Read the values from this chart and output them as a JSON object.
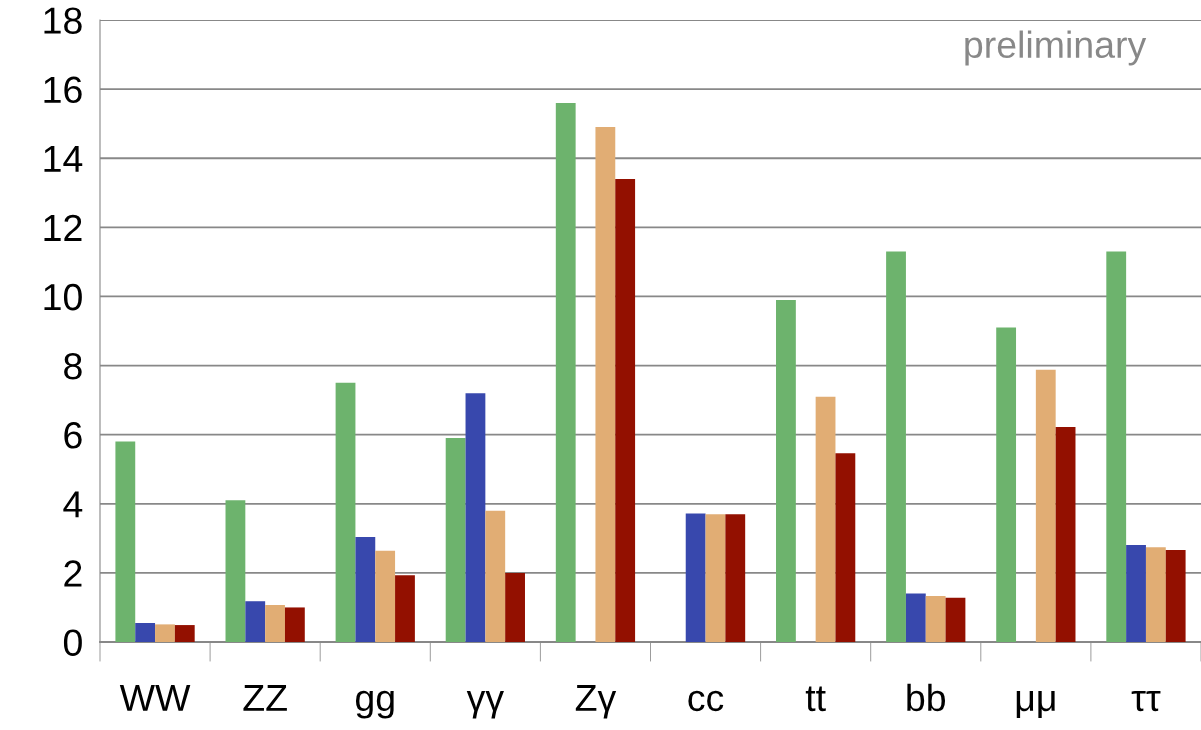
{
  "chart_data": {
    "type": "bar",
    "categories": [
      "WW",
      "ZZ",
      "gg",
      "γγ",
      "Zγ",
      "cc",
      "tt",
      "bb",
      "μμ",
      "ττ"
    ],
    "series": [
      {
        "color": "#6db36d",
        "values": [
          5.8,
          4.1,
          7.5,
          5.9,
          15.6,
          null,
          9.9,
          11.3,
          9.1,
          11.3
        ]
      },
      {
        "color": "#3848ad",
        "values": [
          0.55,
          1.18,
          3.04,
          7.2,
          null,
          3.72,
          null,
          1.4,
          null,
          2.81
        ]
      },
      {
        "color": "#e1ad74",
        "values": [
          0.51,
          1.07,
          2.64,
          3.8,
          14.9,
          3.7,
          7.1,
          1.33,
          7.88,
          2.74
        ]
      },
      {
        "color": "#931000",
        "values": [
          0.49,
          1.0,
          1.93,
          2.0,
          13.4,
          3.7,
          5.46,
          1.28,
          6.22,
          2.66
        ]
      }
    ],
    "ylim": [
      0,
      18
    ],
    "yticks": [
      0,
      2,
      4,
      6,
      8,
      10,
      12,
      14,
      16,
      18
    ],
    "grid": "y",
    "legend": false,
    "annotations": [
      "preliminary"
    ]
  }
}
